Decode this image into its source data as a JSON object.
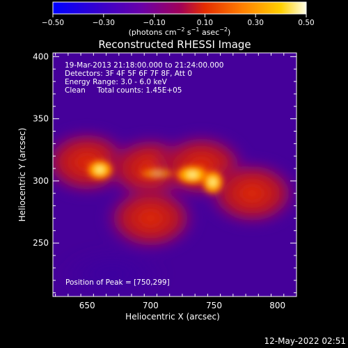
{
  "chart_data": {
    "type": "heatmap",
    "title": "Reconstructed RHESSI Image",
    "xlabel": "Heliocentric X (arcsec)",
    "ylabel": "Heliocentric Y (arcsec)",
    "xlim": [
      623,
      815
    ],
    "ylim": [
      207,
      403
    ],
    "xticks": [
      "650",
      "700",
      "750",
      "800"
    ],
    "yticks": [
      "250",
      "300",
      "350",
      "400"
    ],
    "colorbar": {
      "range": [
        -0.5,
        0.5
      ],
      "ticks": [
        "−0.50",
        "−0.30",
        "−0.10",
        "0.10",
        "0.30",
        "0.50"
      ],
      "unit_main": "(photons cm",
      "unit_exp1": "−2",
      "unit_mid": " s",
      "unit_exp2": "−1",
      "unit_end": " asec",
      "unit_exp3": "−2",
      "unit_close": ")",
      "colormap": [
        "#0000ff",
        "#3c00c8",
        "#6a00a8",
        "#a0005a",
        "#e52d00",
        "#ff8000",
        "#ffd000",
        "#ffffe8"
      ]
    },
    "annotations": [
      "19-Mar-2013 21:18:00.000 to 21:24:00.000",
      "Detectors: 3F 4F 5F 6F 7F 8F, Att 0",
      "Energy Range: 3.0 - 6.0 keV",
      "Clean     Total counts: 1.45E+05"
    ],
    "peak_label": "Position of Peak = [750,299]",
    "peak": [
      750,
      299
    ],
    "sources": [
      {
        "x": 660,
        "y": 309,
        "flux": 0.5
      },
      {
        "x": 745,
        "y": 303,
        "flux": 0.5
      }
    ],
    "background": [
      {
        "x": 650,
        "y": 315,
        "flux": 0.2
      },
      {
        "x": 700,
        "y": 310,
        "flux": 0.2
      },
      {
        "x": 740,
        "y": 312,
        "flux": 0.2
      },
      {
        "x": 780,
        "y": 290,
        "flux": 0.15
      },
      {
        "x": 700,
        "y": 270,
        "flux": 0.15
      }
    ]
  },
  "timestamp": "12-May-2022 02:51"
}
